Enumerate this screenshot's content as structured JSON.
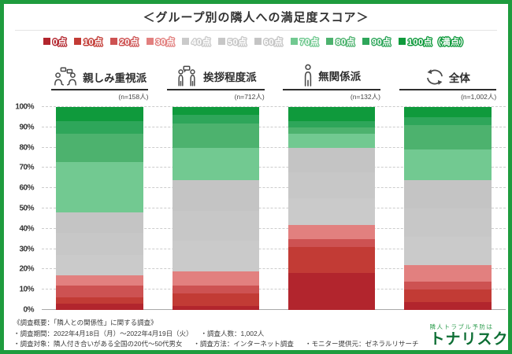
{
  "title": "＜グループ別の隣人への満足度スコア＞",
  "colors": {
    "frame_green": "#1e9c3e",
    "brand_green": "#0d6e34",
    "tagline_green": "#2f9e4f",
    "axis_text": "#333333",
    "grid": "#cccccc"
  },
  "chart_data": {
    "type": "bar",
    "stacked": true,
    "unit": "%",
    "title": "＜グループ別の隣人への満足度スコア＞",
    "categories": [
      "親しみ重視派",
      "挨拶程度派",
      "無関係派",
      "全体"
    ],
    "sample_sizes": [
      "(n=158人)",
      "(n=712人)",
      "(n=132人)",
      "(n=1,002人)"
    ],
    "score_labels": [
      "0点",
      "10点",
      "20点",
      "30点",
      "40点",
      "50点",
      "60点",
      "70点",
      "80点",
      "90点",
      "100点（満点）"
    ],
    "colors": [
      "#b2252d",
      "#c23b35",
      "#cd5252",
      "#e2807f",
      "#cacaca",
      "#c7c7c7",
      "#c4c4c4",
      "#72c991",
      "#4db26e",
      "#2ea65a",
      "#0f9a3c"
    ],
    "series": [
      {
        "name": "0点",
        "values": [
          3,
          2,
          18,
          4
        ]
      },
      {
        "name": "10点",
        "values": [
          3,
          6,
          13,
          6
        ]
      },
      {
        "name": "20点",
        "values": [
          6,
          4,
          4,
          4
        ]
      },
      {
        "name": "30点",
        "values": [
          5,
          7,
          7,
          8
        ]
      },
      {
        "name": "40点",
        "values": [
          10,
          15,
          13,
          14
        ]
      },
      {
        "name": "50点",
        "values": [
          11,
          15,
          13,
          14
        ]
      },
      {
        "name": "60点",
        "values": [
          10,
          15,
          12,
          14
        ]
      },
      {
        "name": "70点",
        "values": [
          25,
          16,
          7,
          15
        ]
      },
      {
        "name": "80点",
        "values": [
          14,
          12,
          3,
          12
        ]
      },
      {
        "name": "90点",
        "values": [
          6,
          4,
          3,
          4
        ]
      },
      {
        "name": "100点（満点）",
        "values": [
          7,
          4,
          7,
          5
        ]
      }
    ],
    "ylim": [
      0,
      100
    ],
    "ytick_step": 10,
    "yticks": [
      "0%",
      "10%",
      "20%",
      "30%",
      "40%",
      "50%",
      "60%",
      "70%",
      "80%",
      "90%",
      "100%"
    ],
    "grid": "dashed-horizontal",
    "legend_position": "top"
  },
  "groups": [
    {
      "name": "親しみ重視派",
      "n": "(n=158人)",
      "icon": "two-people-chat-icon"
    },
    {
      "name": "挨拶程度派",
      "n": "(n=712人)",
      "icon": "two-people-greeting-icon"
    },
    {
      "name": "無関係派",
      "n": "(n=132人)",
      "icon": "single-person-icon"
    },
    {
      "name": "全体",
      "n": "(n=1,002人)",
      "icon": "cycle-arrows-icon"
    }
  ],
  "footer": {
    "survey_heading": "《調査概要：「隣人との関係性」に関する調査》",
    "period": "・調査期間：2022年4月18日（月）～2022年4月19日（火）",
    "people": "・調査人数：1,002人",
    "target": "・調査対象：隣人付き合いがある全国の20代～50代男女",
    "method": "・調査方法：インターネット調査",
    "monitor": "・モニター提供元：ゼネラルリサーチ",
    "logo": {
      "tagline": "隣人トラブル予防は",
      "brand": "トナリスク",
      "icon": "house-magnifier-icon"
    }
  }
}
